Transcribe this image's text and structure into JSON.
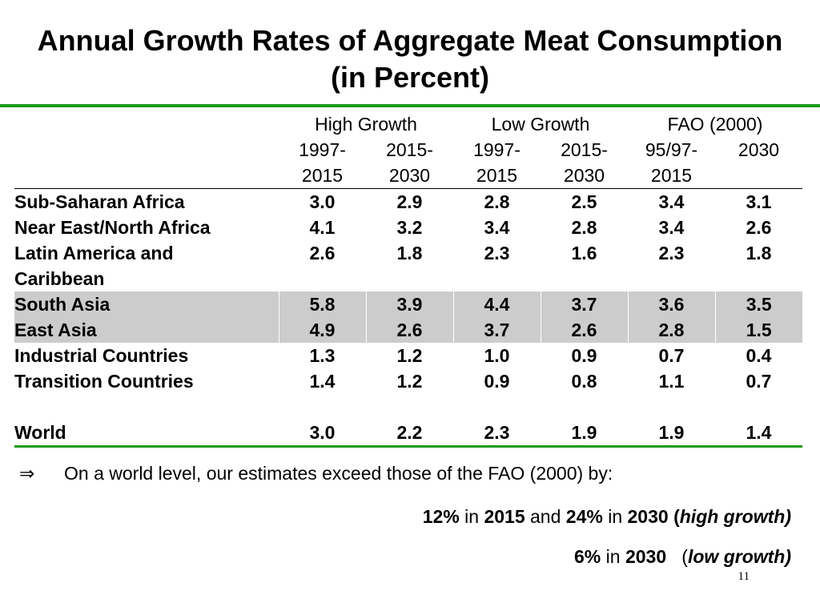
{
  "title": {
    "line1": "Annual Growth Rates of Aggregate Meat Consumption",
    "line2": "(in Percent)"
  },
  "table": {
    "groups": [
      "High Growth",
      "Low Growth",
      "FAO (2000)"
    ],
    "year_headers": [
      [
        "1997-",
        "2015"
      ],
      [
        "2015-",
        "2030"
      ],
      [
        "1997-",
        "2015"
      ],
      [
        "2015-",
        "2030"
      ],
      [
        "95/97-",
        "2015"
      ],
      [
        "2030",
        ""
      ]
    ],
    "rows": [
      {
        "label": "Sub-Saharan Africa",
        "values": [
          "3.0",
          "2.9",
          "2.8",
          "2.5",
          "3.4",
          "3.1"
        ]
      },
      {
        "label": "Near East/North Africa",
        "values": [
          "4.1",
          "3.2",
          "3.4",
          "2.8",
          "3.4",
          "2.6"
        ]
      },
      {
        "label": "Latin America and",
        "values": [
          "2.6",
          "1.8",
          "2.3",
          "1.6",
          "2.3",
          "1.8"
        ]
      },
      {
        "label": "Caribbean",
        "values": [
          "",
          "",
          "",
          "",
          "",
          ""
        ]
      },
      {
        "label": "South Asia",
        "values": [
          "5.8",
          "3.9",
          "4.4",
          "3.7",
          "3.6",
          "3.5"
        ]
      },
      {
        "label": "East Asia",
        "values": [
          "4.9",
          "2.6",
          "3.7",
          "2.6",
          "2.8",
          "1.5"
        ]
      },
      {
        "label": "Industrial Countries",
        "values": [
          "1.3",
          "1.2",
          "1.0",
          "0.9",
          "0.7",
          "0.4"
        ]
      },
      {
        "label": "Transition Countries",
        "values": [
          "1.4",
          "1.2",
          "0.9",
          "0.8",
          "1.1",
          "0.7"
        ]
      },
      {
        "label": "",
        "values": [
          "",
          "",
          "",
          "",
          "",
          ""
        ]
      },
      {
        "label": "World",
        "values": [
          "3.0",
          "2.2",
          "2.3",
          "1.9",
          "1.9",
          "1.4"
        ]
      }
    ]
  },
  "bullet": {
    "symbol": "⇒",
    "text": "On a world level, our estimates exceed those of the FAO (2000) by:"
  },
  "line2": {
    "p1": "12%",
    "t1": " in ",
    "p2": "2015",
    "t2": " and ",
    "p3": "24%",
    "t3": " in ",
    "p4": "2030",
    "t4": " (",
    "p5": "high growth)"
  },
  "line3": {
    "p1": "6%",
    "t1": " in ",
    "p2": "2030",
    "t2": "   (",
    "p3": "low growth)"
  },
  "page_number": "11",
  "colors": {
    "accent_green": "#1a9a1a",
    "highlight_gray": "#cccccc"
  }
}
